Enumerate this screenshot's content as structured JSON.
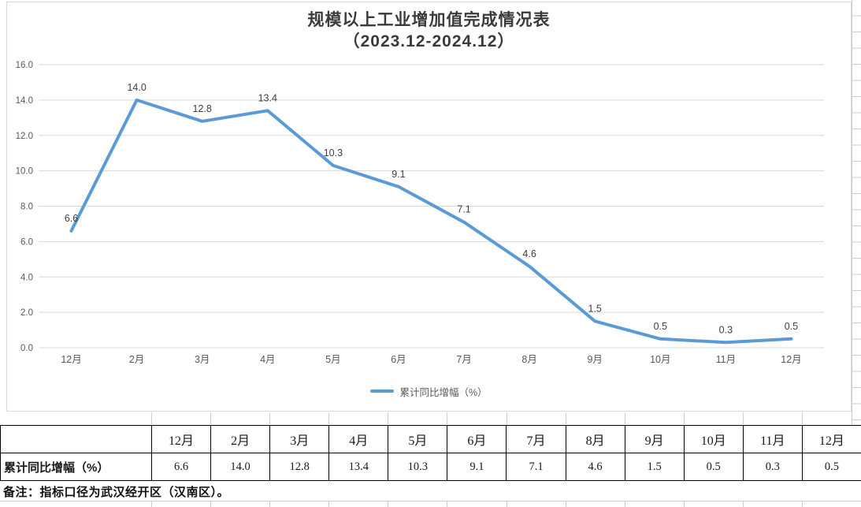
{
  "chart": {
    "title_line1": "规模以上工业增加值完成情况表",
    "title_line2": "（2023.12-2024.12）",
    "legend_label": "累计同比增幅（%）",
    "line_color": "#5B9BD5"
  },
  "chart_data": {
    "type": "line",
    "title": "规模以上工业增加值完成情况表（2023.12-2024.12）",
    "categories": [
      "12月",
      "2月",
      "3月",
      "4月",
      "5月",
      "6月",
      "7月",
      "8月",
      "9月",
      "10月",
      "11月",
      "12月"
    ],
    "series": [
      {
        "name": "累计同比增幅（%）",
        "values": [
          6.6,
          14.0,
          12.8,
          13.4,
          10.3,
          9.1,
          7.1,
          4.6,
          1.5,
          0.5,
          0.3,
          0.5
        ]
      }
    ],
    "xlabel": "",
    "ylabel": "",
    "ylim": [
      0,
      16
    ],
    "ytick_step": 2,
    "ytick_labels": [
      "0.0",
      "2.0",
      "4.0",
      "6.0",
      "8.0",
      "10.0",
      "12.0",
      "14.0",
      "16.0"
    ],
    "grid": true,
    "legend_position": "bottom",
    "data_labels": [
      "6.6",
      "14.0",
      "12.8",
      "13.4",
      "10.3",
      "9.1",
      "7.1",
      "4.6",
      "1.5",
      "0.5",
      "0.3",
      "0.5"
    ]
  },
  "table": {
    "row_label": "累计同比增幅（%）",
    "columns": [
      "12月",
      "2月",
      "3月",
      "4月",
      "5月",
      "6月",
      "7月",
      "8月",
      "9月",
      "10月",
      "11月",
      "12月"
    ],
    "values": [
      "6.6",
      "14.0",
      "12.8",
      "13.4",
      "10.3",
      "9.1",
      "7.1",
      "4.6",
      "1.5",
      "0.5",
      "0.3",
      "0.5"
    ]
  },
  "note": {
    "text": "备注：指标口径为武汉经开区（汉南区）。"
  }
}
